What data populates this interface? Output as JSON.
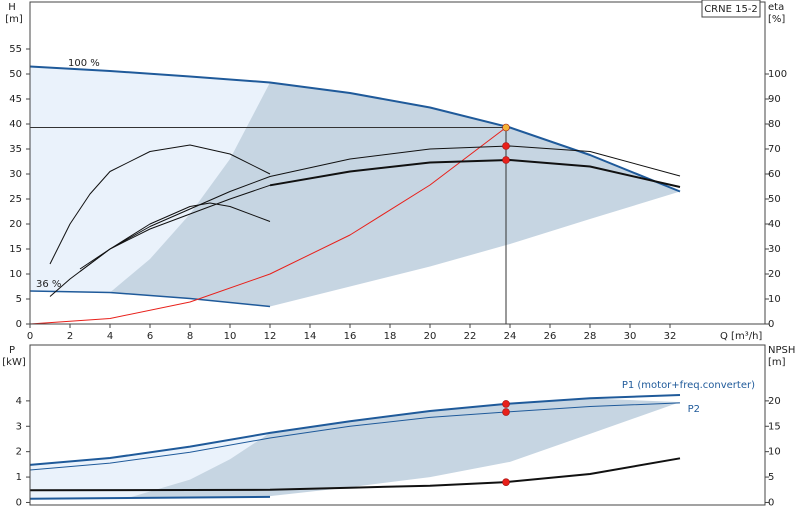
{
  "chart_data": [
    {
      "type": "line",
      "title": "CRNE 15-2",
      "xlabel": "Q [m³/h]",
      "ylabel": "H",
      "yunit": "[m]",
      "y2label": "eta",
      "y2unit": "[%]",
      "xlim": [
        0,
        36.75
      ],
      "xticks": [
        0,
        2,
        4,
        6,
        8,
        10,
        12,
        14,
        16,
        18,
        20,
        22,
        24,
        26,
        28,
        30,
        32
      ],
      "ylim": [
        0,
        64.4
      ],
      "yticks": [
        0,
        5,
        10,
        15,
        20,
        25,
        30,
        35,
        40,
        45,
        50,
        55
      ],
      "y2lim": [
        0,
        128.8
      ],
      "y2ticks": [
        0,
        10,
        20,
        30,
        40,
        50,
        60,
        70,
        80,
        90,
        100
      ],
      "areas": [
        {
          "color": "#eaf2fb",
          "x": [
            0,
            4,
            8,
            12,
            12,
            8,
            4,
            0
          ],
          "y": [
            51.5,
            50.6,
            49.5,
            48.3,
            3.5,
            5.1,
            6.3,
            6.6
          ]
        },
        {
          "color": "#c6d5e2",
          "x": [
            4,
            6,
            8,
            10,
            12,
            16,
            20,
            24,
            28,
            32.5,
            28,
            24,
            20,
            16,
            12,
            8
          ],
          "y": [
            6.3,
            13,
            22,
            33,
            48.3,
            46.2,
            43.3,
            39.3,
            33.8,
            26.5,
            21,
            16,
            11.5,
            7.5,
            3.5,
            5.1
          ]
        }
      ],
      "series": [
        {
          "name": "100 %",
          "color": "#1f5a9a",
          "width": 2,
          "x": [
            0,
            4,
            8,
            12,
            16,
            20,
            24,
            28,
            32.5
          ],
          "values": [
            51.5,
            50.6,
            49.5,
            48.3,
            46.2,
            43.3,
            39.3,
            33.8,
            26.5
          ]
        },
        {
          "name": "36 %",
          "color": "#1f5a9a",
          "width": 1.5,
          "x": [
            0,
            4,
            8,
            12
          ],
          "values": [
            6.6,
            6.3,
            5.1,
            3.5
          ]
        },
        {
          "color": "#e8201a",
          "width": 1,
          "x": [
            0,
            4,
            8,
            12,
            16,
            20,
            23.8
          ],
          "values": [
            0,
            1.1,
            4.4,
            10,
            17.8,
            27.8,
            39.3
          ]
        },
        {
          "color": "#111111",
          "width": 1,
          "axis": "y2",
          "x": [
            1,
            2,
            4,
            6,
            8,
            10,
            12,
            16,
            20,
            24,
            28,
            32.5
          ],
          "values": [
            11,
            18,
            30,
            39,
            46,
            53,
            59,
            66,
            70,
            71.2,
            69,
            59.2
          ]
        },
        {
          "color": "#111111",
          "width": 1,
          "axis": "y2",
          "x": [
            2.5,
            4,
            6,
            8,
            10,
            12
          ],
          "values": [
            22,
            30,
            38,
            44,
            50,
            55.5
          ]
        },
        {
          "color": "#111111",
          "width": 2,
          "axis": "y2",
          "x": [
            12,
            16,
            20,
            24,
            28,
            32.5
          ],
          "values": [
            55.5,
            61,
            64.6,
            65.6,
            63,
            54.8
          ]
        },
        {
          "color": "#111111",
          "width": 1,
          "axis": "y2",
          "x": [
            1,
            2,
            3,
            4,
            6,
            8,
            10,
            12
          ],
          "values": [
            24,
            40,
            52,
            61,
            69,
            71.6,
            68,
            60
          ]
        },
        {
          "color": "#111111",
          "width": 1,
          "axis": "y2",
          "x": [
            2.5,
            4,
            6,
            8,
            9,
            10,
            12
          ],
          "values": [
            21,
            30,
            40,
            47,
            48.4,
            47,
            41
          ]
        }
      ],
      "points": [
        {
          "x": 23.8,
          "y": 39.3,
          "color": "#f5b335"
        },
        {
          "x": 23.8,
          "y": 71.2,
          "axis": "y2",
          "color": "#e8201a"
        },
        {
          "x": 23.8,
          "y": 65.6,
          "axis": "y2",
          "color": "#e8201a"
        }
      ]
    },
    {
      "type": "line",
      "ylabel": "P",
      "yunit": "[kW]",
      "y2label": "NPSH",
      "y2unit": "[m]",
      "xlim": [
        0,
        36.75
      ],
      "ylim": [
        -0.1,
        6.2
      ],
      "yticks": [
        0,
        1,
        2,
        3,
        4
      ],
      "y2lim": [
        -0.5,
        31
      ],
      "y2ticks": [
        0,
        5,
        10,
        15,
        20
      ],
      "areas": [
        {
          "color": "#eaf2fb",
          "x": [
            0,
            4,
            8,
            12,
            12,
            0
          ],
          "y": [
            1.48,
            1.75,
            2.2,
            2.74,
            0.2,
            0.15
          ]
        },
        {
          "color": "#c6d5e2",
          "x": [
            5,
            8,
            10,
            12,
            16,
            20,
            23.8,
            28,
            32.5,
            28,
            24,
            20,
            16,
            12,
            8
          ],
          "y": [
            0.2,
            0.9,
            1.7,
            2.74,
            3.2,
            3.6,
            3.88,
            4.1,
            3.95,
            2.7,
            1.6,
            1.0,
            0.6,
            0.25,
            0.2
          ]
        }
      ],
      "series": [
        {
          "name": "P1 (motor+freq.converter)",
          "color": "#1f5a9a",
          "width": 2,
          "x": [
            0,
            4,
            8,
            12,
            16,
            20,
            23.8,
            28,
            32.5
          ],
          "values": [
            1.48,
            1.75,
            2.2,
            2.74,
            3.2,
            3.6,
            3.88,
            4.1,
            4.23
          ]
        },
        {
          "name": "P2",
          "color": "#1f5a9a",
          "width": 1,
          "x": [
            0,
            4,
            8,
            12,
            16,
            20,
            23.8,
            28,
            32.5
          ],
          "values": [
            1.28,
            1.55,
            1.98,
            2.54,
            3.0,
            3.35,
            3.56,
            3.78,
            3.92
          ]
        },
        {
          "color": "#1f5a9a",
          "width": 2,
          "x": [
            0,
            12
          ],
          "values": [
            0.15,
            0.22
          ]
        },
        {
          "color": "#111111",
          "width": 2,
          "axis": "y2",
          "x": [
            0,
            12,
            16,
            20,
            23.8,
            28,
            32.5
          ],
          "values": [
            2.4,
            2.5,
            2.9,
            3.3,
            4.0,
            5.6,
            8.7
          ]
        }
      ],
      "points": [
        {
          "x": 23.8,
          "y": 3.88,
          "color": "#e8201a"
        },
        {
          "x": 23.8,
          "y": 3.56,
          "color": "#e8201a"
        },
        {
          "x": 23.8,
          "y": 4.0,
          "axis": "y2",
          "color": "#e8201a"
        }
      ]
    }
  ]
}
